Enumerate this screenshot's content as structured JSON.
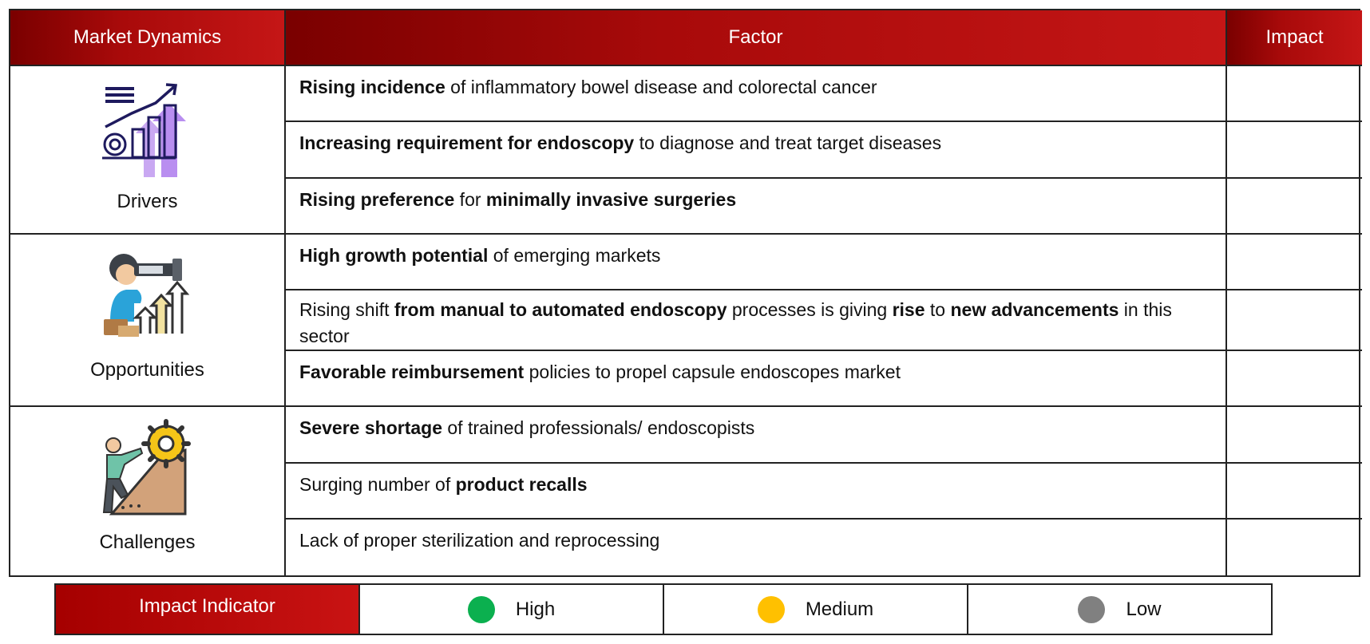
{
  "headers": {
    "dynamics": "Market Dynamics",
    "factor": "Factor",
    "impact": "Impact"
  },
  "categories": [
    {
      "label": "Drivers",
      "icon": "growth-chart-icon"
    },
    {
      "label": "Opportunities",
      "icon": "person-telescope-icon"
    },
    {
      "label": "Challenges",
      "icon": "person-climbing-gear-icon"
    }
  ],
  "factors": [
    {
      "p1": "Rising incidence",
      "p2": " of inflammatory bowel disease and colorectal cancer"
    },
    {
      "p1": "Increasing requirement for endoscopy",
      "p2": " to diagnose and treat target diseases"
    },
    {
      "p1": "Rising preference",
      "p2": " for ",
      "p3": "minimally invasive surgeries"
    },
    {
      "p1": "High growth potential",
      "p2": " of emerging markets"
    },
    {
      "p1": "Rising shift ",
      "p2": "from manual to automated endoscopy",
      "p3": " processes is giving ",
      "p4": "rise",
      "p5": " to ",
      "p6": "new advancements",
      "p7": " in this sector"
    },
    {
      "p1": "Favorable reimbursement",
      "p2": " policies to propel capsule endoscopes market"
    },
    {
      "p1": "Severe shortage",
      "p2": " of trained professionals/ endoscopists"
    },
    {
      "p1": "Surging number of ",
      "p2": "product recalls"
    },
    {
      "p1": "Lack of proper sterilization and reprocessing"
    }
  ],
  "legend": {
    "title": "Impact Indicator",
    "items": [
      {
        "label": "High",
        "color": "#0bb04f"
      },
      {
        "label": "Medium",
        "color": "#ffc000"
      },
      {
        "label": "Low",
        "color": "#808080"
      }
    ]
  },
  "colors": {
    "header_dark": "#7a0000",
    "header_light": "#c51616"
  }
}
